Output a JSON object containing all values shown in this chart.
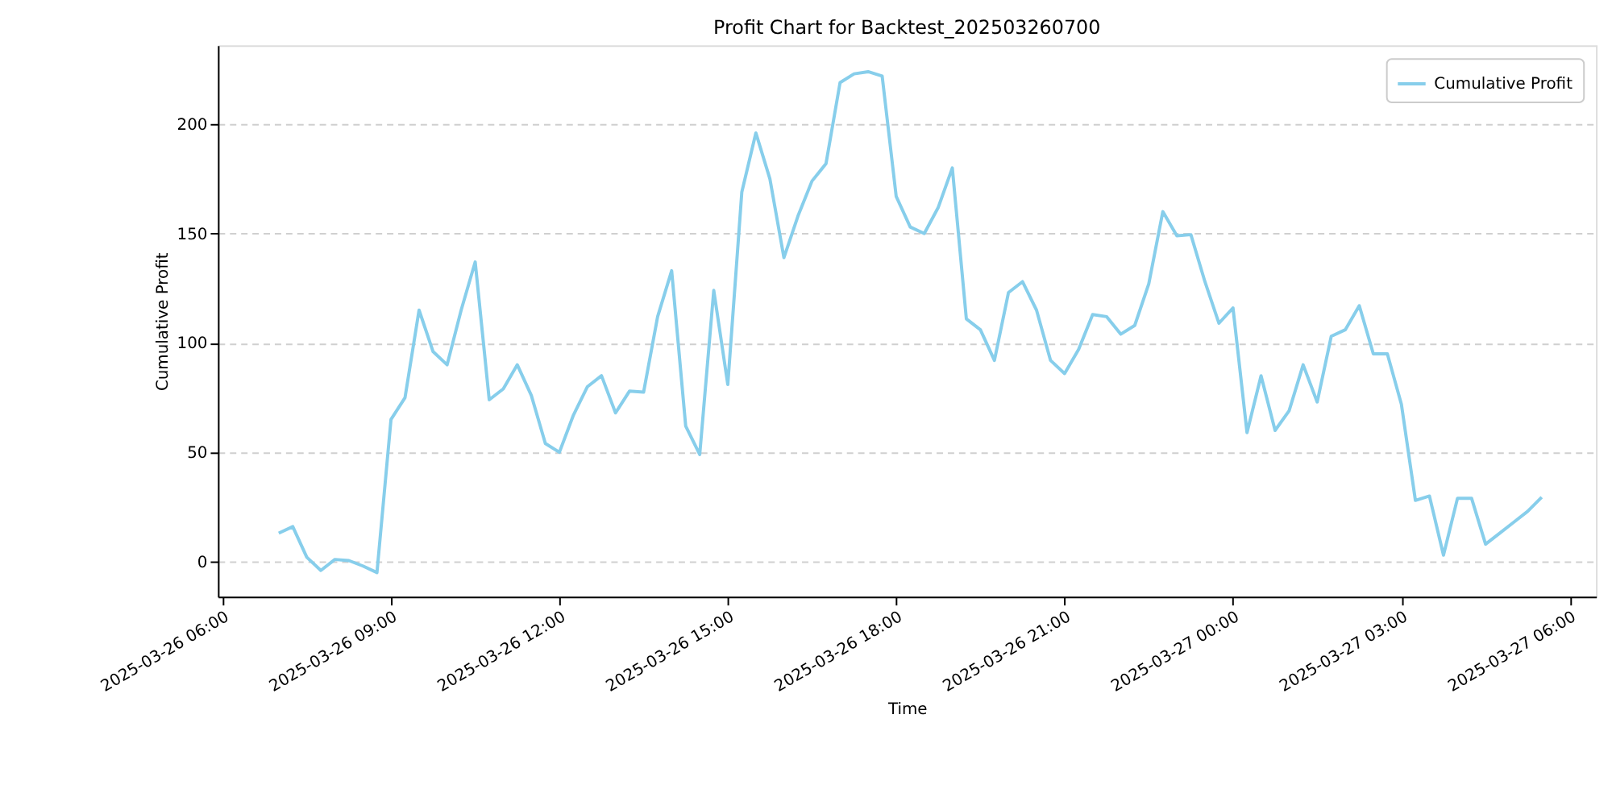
{
  "chart_data": {
    "type": "line",
    "title": "Profit Chart for Backtest_202503260700",
    "xlabel": "Time",
    "ylabel": "Cumulative Profit",
    "x": [
      "2025-03-26T07:00",
      "2025-03-26T07:15",
      "2025-03-26T07:30",
      "2025-03-26T07:45",
      "2025-03-26T08:00",
      "2025-03-26T08:15",
      "2025-03-26T08:30",
      "2025-03-26T08:45",
      "2025-03-26T09:00",
      "2025-03-26T09:15",
      "2025-03-26T09:30",
      "2025-03-26T09:45",
      "2025-03-26T10:00",
      "2025-03-26T10:15",
      "2025-03-26T10:30",
      "2025-03-26T10:45",
      "2025-03-26T11:00",
      "2025-03-26T11:15",
      "2025-03-26T11:30",
      "2025-03-26T11:45",
      "2025-03-26T12:00",
      "2025-03-26T12:15",
      "2025-03-26T12:30",
      "2025-03-26T12:45",
      "2025-03-26T13:00",
      "2025-03-26T13:15",
      "2025-03-26T13:30",
      "2025-03-26T13:45",
      "2025-03-26T14:00",
      "2025-03-26T14:15",
      "2025-03-26T14:30",
      "2025-03-26T14:45",
      "2025-03-26T15:00",
      "2025-03-26T15:15",
      "2025-03-26T15:30",
      "2025-03-26T15:45",
      "2025-03-26T16:00",
      "2025-03-26T16:15",
      "2025-03-26T16:30",
      "2025-03-26T16:45",
      "2025-03-26T17:00",
      "2025-03-26T17:15",
      "2025-03-26T17:30",
      "2025-03-26T17:45",
      "2025-03-26T18:00",
      "2025-03-26T18:15",
      "2025-03-26T18:30",
      "2025-03-26T18:45",
      "2025-03-26T19:00",
      "2025-03-26T19:15",
      "2025-03-26T19:30",
      "2025-03-26T19:45",
      "2025-03-26T20:00",
      "2025-03-26T20:15",
      "2025-03-26T20:30",
      "2025-03-26T20:45",
      "2025-03-26T21:00",
      "2025-03-26T21:15",
      "2025-03-26T21:30",
      "2025-03-26T21:45",
      "2025-03-26T22:00",
      "2025-03-26T22:15",
      "2025-03-26T22:30",
      "2025-03-26T22:45",
      "2025-03-26T23:00",
      "2025-03-26T23:15",
      "2025-03-26T23:30",
      "2025-03-26T23:45",
      "2025-03-27T00:00",
      "2025-03-27T00:15",
      "2025-03-27T00:30",
      "2025-03-27T00:45",
      "2025-03-27T01:00",
      "2025-03-27T01:15",
      "2025-03-27T01:30",
      "2025-03-27T01:45",
      "2025-03-27T02:00",
      "2025-03-27T02:15",
      "2025-03-27T02:30",
      "2025-03-27T02:45",
      "2025-03-27T03:00",
      "2025-03-27T03:15",
      "2025-03-27T03:30",
      "2025-03-27T03:45",
      "2025-03-27T04:00",
      "2025-03-27T04:15",
      "2025-03-27T04:30",
      "2025-03-27T04:45",
      "2025-03-27T05:00",
      "2025-03-27T05:15",
      "2025-03-27T05:30"
    ],
    "series": [
      {
        "name": "Cumulative Profit",
        "color": "#87ceeb",
        "values": [
          13,
          16,
          2,
          -4,
          1,
          0.5,
          -2,
          -5,
          65,
          75,
          115,
          96,
          90,
          115,
          137,
          74,
          79,
          90,
          76,
          54,
          50,
          67,
          80,
          85,
          68,
          78,
          77.5,
          112,
          133,
          62,
          49,
          124,
          81,
          169,
          196,
          175,
          139,
          158,
          174,
          182,
          219,
          223,
          224,
          222,
          167,
          153,
          150,
          162,
          180,
          111,
          106,
          92,
          123,
          128,
          115,
          92,
          86,
          97,
          113,
          112,
          104,
          108,
          127,
          160,
          149,
          149.5,
          128,
          109,
          116,
          59,
          85,
          60,
          69,
          90,
          73,
          103,
          106,
          117,
          95,
          95,
          72,
          28,
          30,
          3,
          29,
          29,
          8,
          13,
          18,
          23,
          29.5
        ]
      }
    ],
    "xlim": [
      "2025-03-26T05:55",
      "2025-03-27T06:28"
    ],
    "xticks": [
      {
        "value": "2025-03-26T06:00",
        "label": "2025-03-26 06:00"
      },
      {
        "value": "2025-03-26T09:00",
        "label": "2025-03-26 09:00"
      },
      {
        "value": "2025-03-26T12:00",
        "label": "2025-03-26 12:00"
      },
      {
        "value": "2025-03-26T15:00",
        "label": "2025-03-26 15:00"
      },
      {
        "value": "2025-03-26T18:00",
        "label": "2025-03-26 18:00"
      },
      {
        "value": "2025-03-26T21:00",
        "label": "2025-03-26 21:00"
      },
      {
        "value": "2025-03-27T00:00",
        "label": "2025-03-27 00:00"
      },
      {
        "value": "2025-03-27T03:00",
        "label": "2025-03-27 03:00"
      },
      {
        "value": "2025-03-27T06:00",
        "label": "2025-03-27 06:00"
      }
    ],
    "ylim": [
      -16,
      236
    ],
    "yticks": [
      0,
      50,
      100,
      150,
      200
    ],
    "grid": "y",
    "legend": "top right",
    "marker": "none",
    "line_style": "solid"
  }
}
